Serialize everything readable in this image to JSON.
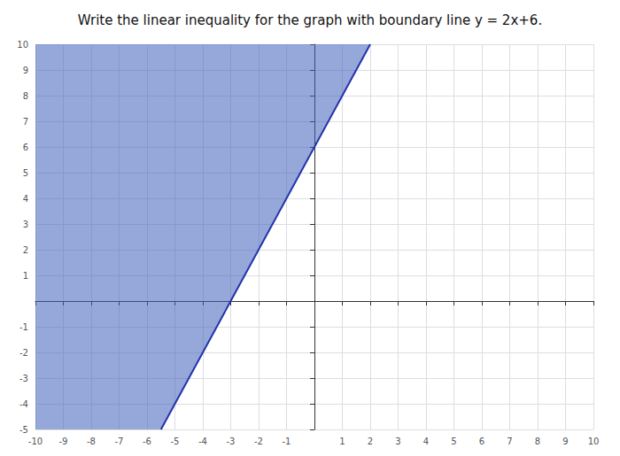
{
  "chart_data": {
    "type": "line",
    "title": "Write the linear inequality for the graph with boundary line y = 2x+6.",
    "xlim": [
      -10,
      10
    ],
    "ylim": [
      -5,
      10
    ],
    "xticks": [
      -10,
      -9,
      -8,
      -7,
      -6,
      -5,
      -4,
      -3,
      -2,
      -1,
      1,
      2,
      3,
      4,
      5,
      6,
      7,
      8,
      9,
      10
    ],
    "yticks": [
      -5,
      -4,
      -3,
      -2,
      -1,
      1,
      2,
      3,
      4,
      5,
      6,
      7,
      8,
      9,
      10
    ],
    "grid": true,
    "series": [
      {
        "type": "area",
        "color": "#4060bb",
        "x": [
          -10,
          2,
          -5.5,
          -10
        ],
        "values": [
          10,
          10,
          -5,
          -5
        ]
      },
      {
        "type": "line",
        "color": "#2233aa",
        "x": [
          -5.5,
          2
        ],
        "values": [
          -5,
          10
        ]
      }
    ]
  }
}
